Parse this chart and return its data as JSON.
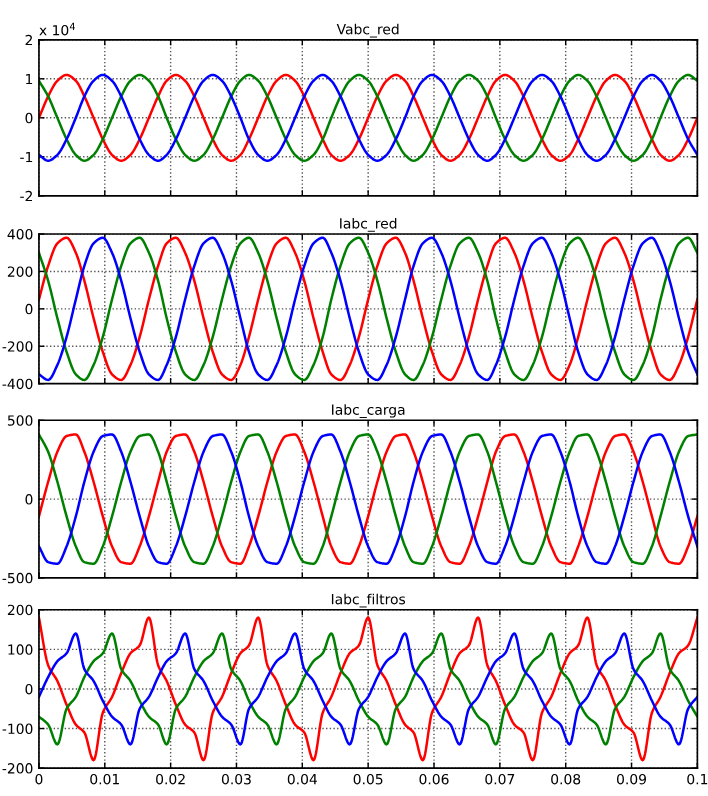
{
  "chart_data": [
    {
      "type": "line",
      "title": "Vabc_red",
      "annotations": [
        "x 10$^{4}$"
      ],
      "x": [
        0,
        0.0014,
        0.0028,
        0.0042,
        0.0056,
        0.0069,
        0.0083,
        0.0097,
        0.0111,
        0.0125,
        0.0139,
        0.0153,
        0.0167,
        0.0181,
        0.0194,
        0.0208,
        0.0222,
        0.0236,
        0.025,
        0.0264,
        0.0278,
        0.0292,
        0.0306,
        0.0319,
        0.0333,
        0.0347,
        0.0361,
        0.0375,
        0.0389,
        0.0403,
        0.0417,
        0.0431,
        0.0444,
        0.0458,
        0.0472,
        0.0486,
        0.05,
        0.0514,
        0.0528,
        0.0542,
        0.0556,
        0.0569,
        0.0583,
        0.0597,
        0.0611,
        0.0625,
        0.0639,
        0.0653,
        0.0667,
        0.0681,
        0.0694,
        0.0708,
        0.0722,
        0.0736,
        0.075,
        0.0764,
        0.0778,
        0.0792,
        0.0806,
        0.0819,
        0.0833,
        0.0847,
        0.0861,
        0.0875,
        0.0889,
        0.0903,
        0.0917,
        0.0931,
        0.0944,
        0.0958,
        0.0972,
        0.0986,
        0.1
      ],
      "series": [
        {
          "color": "#ff0000",
          "values": [
            0,
            0.55,
            0.95,
            1.1,
            0.95,
            0.55,
            0,
            -0.55,
            -0.95,
            -1.1,
            -0.95,
            -0.55,
            0,
            0.55,
            0.95,
            1.1,
            0.95,
            0.55,
            0,
            -0.55,
            -0.95,
            -1.1,
            -0.95,
            -0.55,
            0,
            0.55,
            0.95,
            1.1,
            0.95,
            0.55,
            0,
            -0.55,
            -0.95,
            -1.1,
            -0.95,
            -0.55,
            0,
            0.55,
            0.95,
            1.1,
            0.95,
            0.55,
            0,
            -0.55,
            -0.95,
            -1.1,
            -0.95,
            -0.55,
            0,
            0.55,
            0.95,
            1.1,
            0.95,
            0.55,
            0,
            -0.55,
            -0.95,
            -1.1,
            -0.95,
            -0.55,
            0,
            0.55,
            0.95,
            1.1,
            0.95,
            0.55,
            0,
            -0.55,
            -0.95,
            -1.1,
            -0.95,
            -0.55,
            0
          ]
        },
        {
          "color": "#008000",
          "values": [
            0.95,
            0.55,
            0,
            -0.55,
            -0.95,
            -1.1,
            -0.95,
            -0.55,
            0,
            0.55,
            0.95,
            1.1,
            0.95,
            0.55,
            0,
            -0.55,
            -0.95,
            -1.1,
            -0.95,
            -0.55,
            0,
            0.55,
            0.95,
            1.1,
            0.95,
            0.55,
            0,
            -0.55,
            -0.95,
            -1.1,
            -0.95,
            -0.55,
            0,
            0.55,
            0.95,
            1.1,
            0.95,
            0.55,
            0,
            -0.55,
            -0.95,
            -1.1,
            -0.95,
            -0.55,
            0,
            0.55,
            0.95,
            1.1,
            0.95,
            0.55,
            0,
            -0.55,
            -0.95,
            -1.1,
            -0.95,
            -0.55,
            0,
            0.55,
            0.95,
            1.1,
            0.95,
            0.55,
            0,
            -0.55,
            -0.95,
            -1.1,
            -0.95,
            -0.55,
            0,
            0.55,
            0.95,
            1.1,
            0.95
          ]
        },
        {
          "color": "#0000ff",
          "values": [
            -0.95,
            -1.1,
            -0.95,
            -0.55,
            0,
            0.55,
            0.95,
            1.1,
            0.95,
            0.55,
            0,
            -0.55,
            -0.95,
            -1.1,
            -0.95,
            -0.55,
            0,
            0.55,
            0.95,
            1.1,
            0.95,
            0.55,
            0,
            -0.55,
            -0.95,
            -1.1,
            -0.95,
            -0.55,
            0,
            0.55,
            0.95,
            1.1,
            0.95,
            0.55,
            0,
            -0.55,
            -0.95,
            -1.1,
            -0.95,
            -0.55,
            0,
            0.55,
            0.95,
            1.1,
            0.95,
            0.55,
            0,
            -0.55,
            -0.95,
            -1.1,
            -0.95,
            -0.55,
            0,
            0.55,
            0.95,
            1.1,
            0.95,
            0.55,
            0,
            -0.55,
            -0.95,
            -1.1,
            -0.95,
            -0.55,
            0,
            0.55,
            0.95,
            1.1,
            0.95,
            0.55,
            0,
            -0.55,
            -0.95
          ]
        }
      ],
      "xlim": [
        0,
        0.1
      ],
      "xticks": [
        0,
        0.01,
        0.02,
        0.03,
        0.04,
        0.05,
        0.06,
        0.07,
        0.08,
        0.09,
        0.1
      ],
      "ylim": [
        -2,
        2
      ],
      "yticks": [
        -2,
        -1,
        0,
        1,
        2
      ],
      "grid": true,
      "tick_labels": "y"
    },
    {
      "type": "line",
      "title": "Iabc_red",
      "x": [
        0,
        0.0014,
        0.0028,
        0.0042,
        0.0056,
        0.0069,
        0.0083,
        0.0097,
        0.0111,
        0.0125,
        0.0139,
        0.0153,
        0.0167,
        0.0181,
        0.0194,
        0.0208,
        0.0222,
        0.0236,
        0.025,
        0.0264,
        0.0278,
        0.0292,
        0.0306,
        0.0319,
        0.0333,
        0.0347,
        0.0361,
        0.0375,
        0.0389,
        0.0403,
        0.0417,
        0.0431,
        0.0444,
        0.0458,
        0.0472,
        0.0486,
        0.05,
        0.0514,
        0.0528,
        0.0542,
        0.0556,
        0.0569,
        0.0583,
        0.0597,
        0.0611,
        0.0625,
        0.0639,
        0.0653,
        0.0667,
        0.0681,
        0.0694,
        0.0708,
        0.0722,
        0.0736,
        0.075,
        0.0764,
        0.0778,
        0.0792,
        0.0806,
        0.0819,
        0.0833,
        0.0847,
        0.0861,
        0.0875,
        0.0889,
        0.0903,
        0.0917,
        0.0931,
        0.0944,
        0.0958,
        0.0972,
        0.0986,
        0.1
      ],
      "series": [
        {
          "color": "#ff0000",
          "values": [
            50,
            230,
            350,
            380,
            300,
            150,
            -50,
            -230,
            -350,
            -380,
            -300,
            -150,
            50,
            230,
            350,
            380,
            300,
            150,
            -50,
            -230,
            -350,
            -380,
            -300,
            -150,
            50,
            230,
            350,
            380,
            300,
            150,
            -50,
            -230,
            -350,
            -380,
            -300,
            -150,
            50,
            230,
            350,
            380,
            300,
            150,
            -50,
            -230,
            -350,
            -380,
            -300,
            -150,
            50,
            230,
            350,
            380,
            300,
            150,
            -50,
            -230,
            -350,
            -380,
            -300,
            -150,
            50,
            230,
            350,
            380,
            300,
            150,
            -50,
            -230,
            -350,
            -380,
            -300,
            -150,
            50
          ]
        },
        {
          "color": "#008000",
          "values": [
            300,
            150,
            -50,
            -230,
            -350,
            -380,
            -300,
            -150,
            50,
            230,
            350,
            380,
            300,
            150,
            -50,
            -230,
            -350,
            -380,
            -300,
            -150,
            50,
            230,
            350,
            380,
            300,
            150,
            -50,
            -230,
            -350,
            -380,
            -300,
            -150,
            50,
            230,
            350,
            380,
            300,
            150,
            -50,
            -230,
            -350,
            -380,
            -300,
            -150,
            50,
            230,
            350,
            380,
            300,
            150,
            -50,
            -230,
            -350,
            -380,
            -300,
            -150,
            50,
            230,
            350,
            380,
            300,
            150,
            -50,
            -230,
            -350,
            -380,
            -300,
            -150,
            50,
            230,
            350,
            380,
            300
          ]
        },
        {
          "color": "#0000ff",
          "values": [
            -350,
            -380,
            -300,
            -150,
            50,
            230,
            350,
            380,
            300,
            150,
            -50,
            -230,
            -350,
            -380,
            -300,
            -150,
            50,
            230,
            350,
            380,
            300,
            150,
            -50,
            -230,
            -350,
            -380,
            -300,
            -150,
            50,
            230,
            350,
            380,
            300,
            150,
            -50,
            -230,
            -350,
            -380,
            -300,
            -150,
            50,
            230,
            350,
            380,
            300,
            150,
            -50,
            -230,
            -350,
            -380,
            -300,
            -150,
            50,
            230,
            350,
            380,
            300,
            150,
            -50,
            -230,
            -350,
            -380,
            -300,
            -150,
            50,
            230,
            350,
            380,
            300,
            150,
            -50,
            -230,
            -350
          ]
        }
      ],
      "xlim": [
        0,
        0.1
      ],
      "xticks": [
        0,
        0.01,
        0.02,
        0.03,
        0.04,
        0.05,
        0.06,
        0.07,
        0.08,
        0.09,
        0.1
      ],
      "ylim": [
        -400,
        400
      ],
      "yticks": [
        -400,
        -200,
        0,
        200,
        400
      ],
      "grid": true,
      "tick_labels": "y"
    },
    {
      "type": "line",
      "title": "Iabc_carga",
      "x": [
        0,
        0.0014,
        0.0028,
        0.0042,
        0.0056,
        0.0069,
        0.0083,
        0.0097,
        0.0111,
        0.0125,
        0.0139,
        0.0153,
        0.0167,
        0.0181,
        0.0194,
        0.0208,
        0.0222,
        0.0236,
        0.025,
        0.0264,
        0.0278,
        0.0292,
        0.0306,
        0.0319,
        0.0333,
        0.0347,
        0.0361,
        0.0375,
        0.0389,
        0.0403,
        0.0417,
        0.0431,
        0.0444,
        0.0458,
        0.0472,
        0.0486,
        0.05,
        0.0514,
        0.0528,
        0.0542,
        0.0556,
        0.0569,
        0.0583,
        0.0597,
        0.0611,
        0.0625,
        0.0639,
        0.0653,
        0.0667,
        0.0681,
        0.0694,
        0.0708,
        0.0722,
        0.0736,
        0.075,
        0.0764,
        0.0778,
        0.0792,
        0.0806,
        0.0819,
        0.0833,
        0.0847,
        0.0861,
        0.0875,
        0.0889,
        0.0903,
        0.0917,
        0.0931,
        0.0944,
        0.0958,
        0.0972,
        0.0986,
        0.1
      ],
      "series": [
        {
          "color": "#ff0000",
          "values": [
            -110,
            110,
            300,
            400,
            410,
            300,
            110,
            -110,
            -300,
            -400,
            -410,
            -300,
            -110,
            110,
            300,
            400,
            410,
            300,
            110,
            -110,
            -300,
            -400,
            -410,
            -300,
            -110,
            110,
            300,
            400,
            410,
            300,
            110,
            -110,
            -300,
            -400,
            -410,
            -300,
            -110,
            110,
            300,
            400,
            410,
            300,
            110,
            -110,
            -300,
            -400,
            -410,
            -300,
            -110,
            110,
            300,
            400,
            410,
            300,
            110,
            -110,
            -300,
            -400,
            -410,
            -300,
            -110,
            110,
            300,
            400,
            410,
            300,
            110,
            -110,
            -300,
            -400,
            -410,
            -300,
            -110
          ]
        },
        {
          "color": "#008000",
          "values": [
            410,
            300,
            110,
            -110,
            -300,
            -400,
            -410,
            -300,
            -110,
            110,
            300,
            400,
            410,
            300,
            110,
            -110,
            -300,
            -400,
            -410,
            -300,
            -110,
            110,
            300,
            400,
            410,
            300,
            110,
            -110,
            -300,
            -400,
            -410,
            -300,
            -110,
            110,
            300,
            400,
            410,
            300,
            110,
            -110,
            -300,
            -400,
            -410,
            -300,
            -110,
            110,
            300,
            400,
            410,
            300,
            110,
            -110,
            -300,
            -400,
            -410,
            -300,
            -110,
            110,
            300,
            400,
            410,
            300,
            110,
            -110,
            -300,
            -400,
            -410,
            -300,
            -110,
            110,
            300,
            400,
            410
          ]
        },
        {
          "color": "#0000ff",
          "values": [
            -300,
            -400,
            -410,
            -300,
            -110,
            110,
            300,
            400,
            410,
            300,
            110,
            -110,
            -300,
            -400,
            -410,
            -300,
            -110,
            110,
            300,
            400,
            410,
            300,
            110,
            -110,
            -300,
            -400,
            -410,
            -300,
            -110,
            110,
            300,
            400,
            410,
            300,
            110,
            -110,
            -300,
            -400,
            -410,
            -300,
            -110,
            110,
            300,
            400,
            410,
            300,
            110,
            -110,
            -300,
            -400,
            -410,
            -300,
            -110,
            110,
            300,
            400,
            410,
            300,
            110,
            -110,
            -300,
            -400,
            -410,
            -300,
            -110,
            110,
            300,
            400,
            410,
            300,
            110,
            -110,
            -300
          ]
        }
      ],
      "xlim": [
        0,
        0.1
      ],
      "xticks": [
        0,
        0.01,
        0.02,
        0.03,
        0.04,
        0.05,
        0.06,
        0.07,
        0.08,
        0.09,
        0.1
      ],
      "ylim": [
        -500,
        500
      ],
      "yticks": [
        -500,
        0,
        500
      ],
      "grid": true,
      "tick_labels": "y"
    },
    {
      "type": "line",
      "title": "Iabc_filtros",
      "x": [
        0,
        0.0014,
        0.0028,
        0.0042,
        0.0056,
        0.0069,
        0.0083,
        0.0097,
        0.0111,
        0.0125,
        0.0139,
        0.0153,
        0.0167,
        0.0181,
        0.0194,
        0.0208,
        0.0222,
        0.0236,
        0.025,
        0.0264,
        0.0278,
        0.0292,
        0.0306,
        0.0319,
        0.0333,
        0.0347,
        0.0361,
        0.0375,
        0.0389,
        0.0403,
        0.0417,
        0.0431,
        0.0444,
        0.0458,
        0.0472,
        0.0486,
        0.05,
        0.0514,
        0.0528,
        0.0542,
        0.0556,
        0.0569,
        0.0583,
        0.0597,
        0.0611,
        0.0625,
        0.0639,
        0.0653,
        0.0667,
        0.0681,
        0.0694,
        0.0708,
        0.0722,
        0.0736,
        0.075,
        0.0764,
        0.0778,
        0.0792,
        0.0806,
        0.0819,
        0.0833,
        0.0847,
        0.0861,
        0.0875,
        0.0889,
        0.0903,
        0.0917,
        0.0931,
        0.0944,
        0.0958,
        0.0972,
        0.0986,
        0.1
      ],
      "series": [
        {
          "color": "#ff0000",
          "values": [
            180,
            60,
            20,
            -40,
            -90,
            -110,
            -180,
            -60,
            -20,
            40,
            90,
            110,
            180,
            60,
            20,
            -40,
            -90,
            -110,
            -180,
            -60,
            -20,
            40,
            90,
            110,
            180,
            60,
            20,
            -40,
            -90,
            -110,
            -180,
            -60,
            -20,
            40,
            90,
            110,
            180,
            60,
            20,
            -40,
            -90,
            -110,
            -180,
            -60,
            -20,
            40,
            90,
            110,
            180,
            60,
            20,
            -40,
            -90,
            -110,
            -180,
            -60,
            -20,
            40,
            90,
            110,
            180,
            60,
            20,
            -40,
            -90,
            -110,
            -180,
            -60,
            -20,
            40,
            90,
            110,
            180
          ]
        },
        {
          "color": "#008000",
          "values": [
            -70,
            -90,
            -140,
            -50,
            -20,
            30,
            70,
            90,
            140,
            50,
            20,
            -30,
            -70,
            -90,
            -140,
            -50,
            -20,
            30,
            70,
            90,
            140,
            50,
            20,
            -30,
            -70,
            -90,
            -140,
            -50,
            -20,
            30,
            70,
            90,
            140,
            50,
            20,
            -30,
            -70,
            -90,
            -140,
            -50,
            -20,
            30,
            70,
            90,
            140,
            50,
            20,
            -30,
            -70,
            -90,
            -140,
            -50,
            -20,
            30,
            70,
            90,
            140,
            50,
            20,
            -30,
            -70,
            -90,
            -140,
            -50,
            -20,
            30,
            70,
            90,
            140,
            50,
            20,
            -30,
            -70
          ]
        },
        {
          "color": "#0000ff",
          "values": [
            -20,
            30,
            70,
            90,
            140,
            50,
            20,
            -30,
            -70,
            -90,
            -140,
            -50,
            -20,
            30,
            70,
            90,
            140,
            50,
            20,
            -30,
            -70,
            -90,
            -140,
            -50,
            -20,
            30,
            70,
            90,
            140,
            50,
            20,
            -30,
            -70,
            -90,
            -140,
            -50,
            -20,
            30,
            70,
            90,
            140,
            50,
            20,
            -30,
            -70,
            -90,
            -140,
            -50,
            -20,
            30,
            70,
            90,
            140,
            50,
            20,
            -30,
            -70,
            -90,
            -140,
            -50,
            -20,
            30,
            70,
            90,
            140,
            50,
            20,
            -30,
            -70,
            -90,
            -140,
            -50,
            -20
          ]
        }
      ],
      "xlim": [
        0,
        0.1
      ],
      "xticks": [
        0,
        0.01,
        0.02,
        0.03,
        0.04,
        0.05,
        0.06,
        0.07,
        0.08,
        0.09,
        0.1
      ],
      "ylim": [
        -200,
        200
      ],
      "yticks": [
        -200,
        -100,
        0,
        100,
        200
      ],
      "grid": true
    }
  ]
}
